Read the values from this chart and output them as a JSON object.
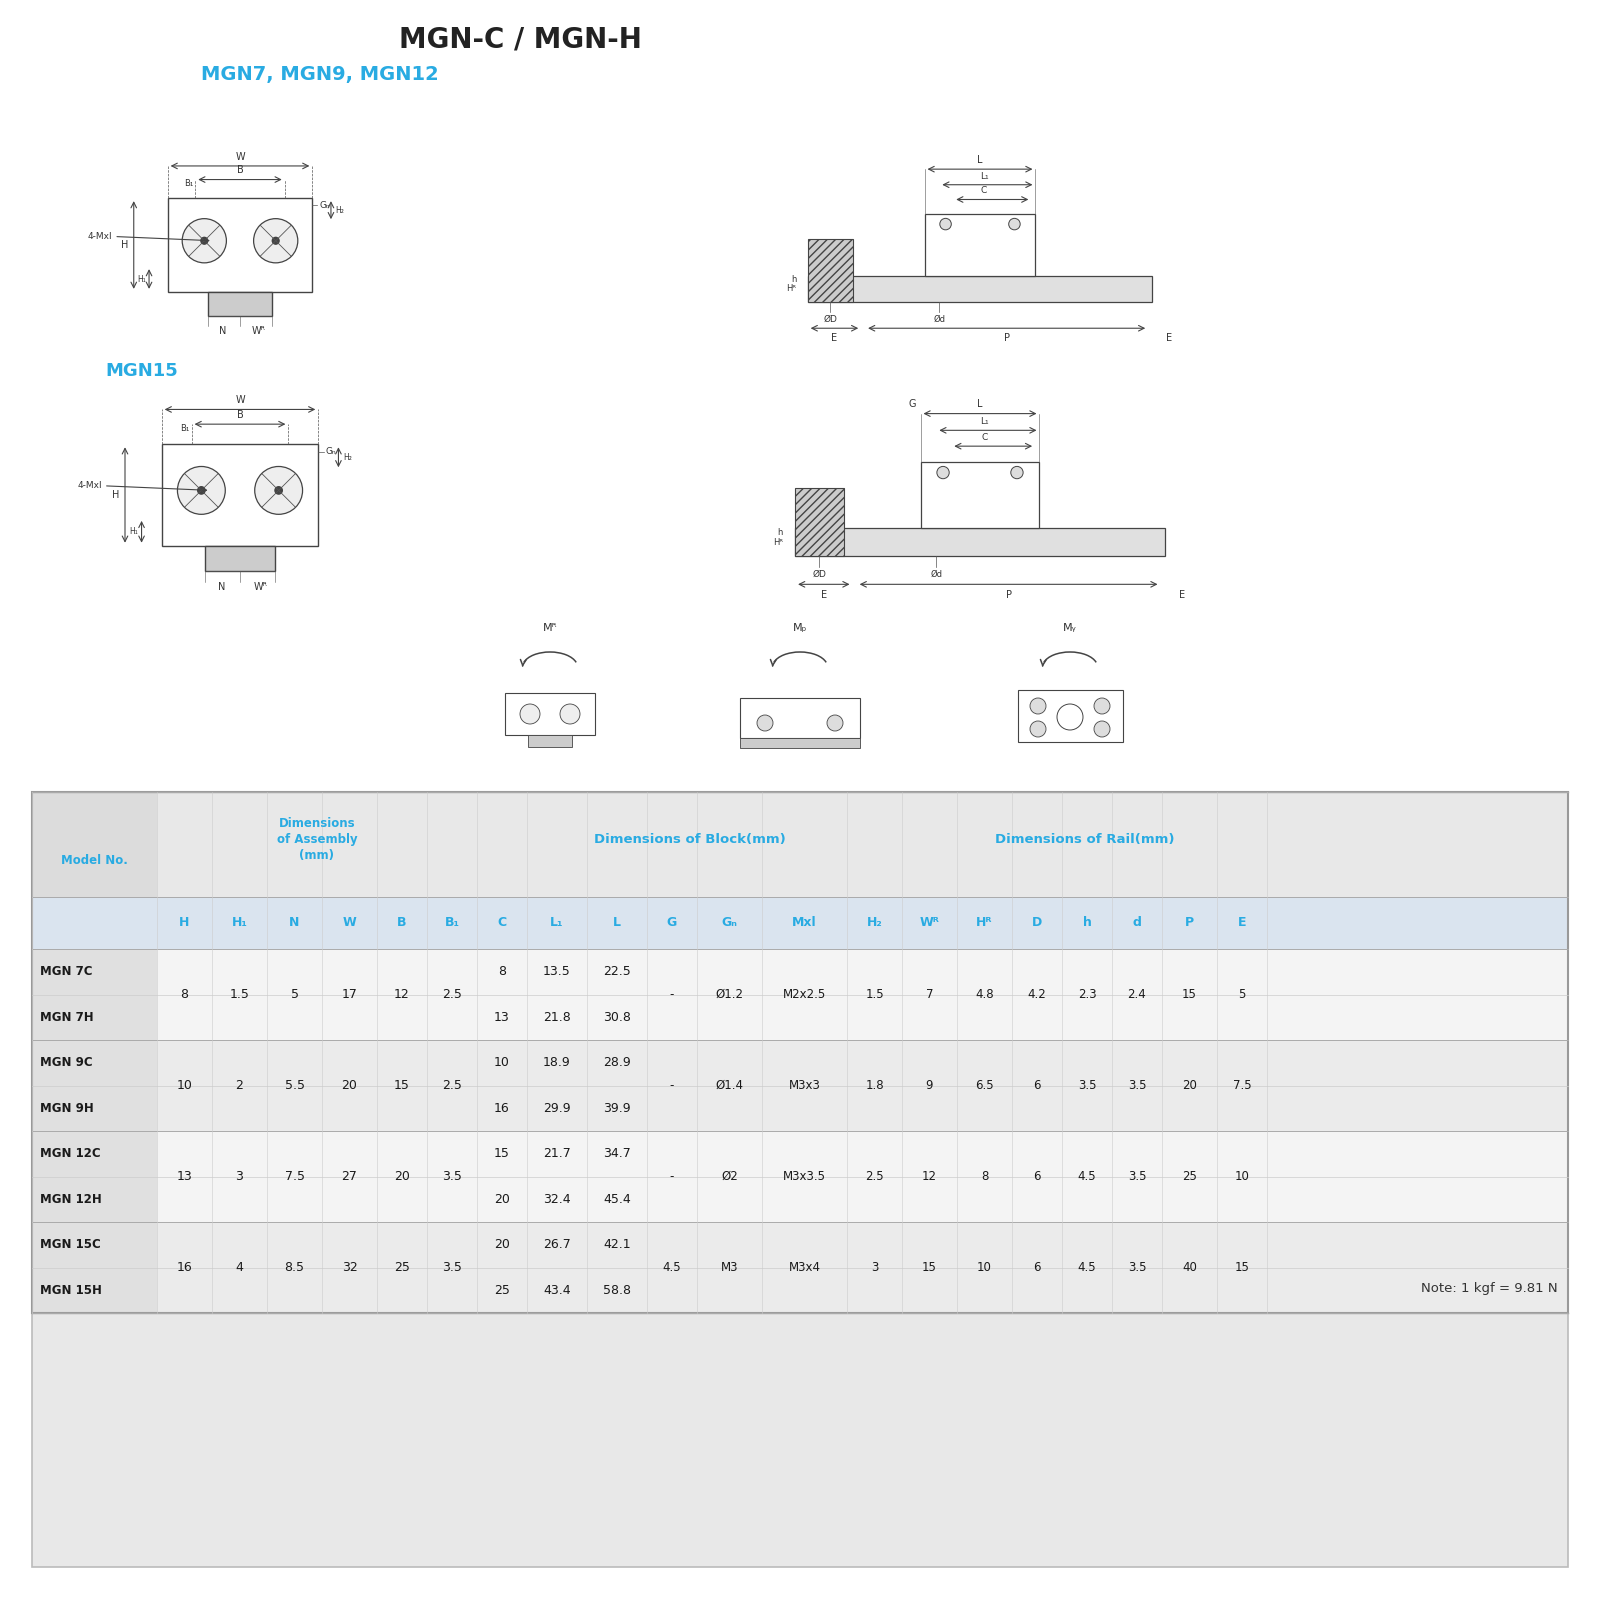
{
  "title": "MGN-C / MGN-H",
  "subtitle1": "MGN7, MGN9, MGN12",
  "subtitle2": "MGN15",
  "title_color": "#222222",
  "subtitle_color": "#29abe2",
  "bg_color": "#ffffff",
  "table_header_color": "#29abe2",
  "note": "Note: 1 kgf = 9.81 N",
  "col_header_labels": [
    "",
    "H",
    "H₁",
    "N",
    "W",
    "B",
    "B₁",
    "C",
    "L₁",
    "L",
    "G",
    "Gₙ",
    "Mxl",
    "H₂",
    "Wᴿ",
    "Hᴿ",
    "D",
    "h",
    "d",
    "P",
    "E"
  ],
  "col_widths": [
    1.25,
    0.55,
    0.55,
    0.55,
    0.55,
    0.5,
    0.5,
    0.5,
    0.6,
    0.6,
    0.5,
    0.65,
    0.85,
    0.55,
    0.55,
    0.55,
    0.5,
    0.5,
    0.5,
    0.55,
    0.5
  ],
  "rows": [
    {
      "model": "MGN 7C",
      "H": "8",
      "H1": "1.5",
      "N": "5",
      "W": "17",
      "B": "12",
      "B1": "2.5",
      "C": "8",
      "L1": "13.5",
      "L": "22.5",
      "G": "-",
      "Gn": "Ø1.2",
      "Mxl": "M2x2.5",
      "H2": "1.5",
      "WR": "7",
      "HR": "4.8",
      "D": "4.2",
      "h": "2.3",
      "d": "2.4",
      "P": "15",
      "E": "5"
    },
    {
      "model": "MGN 7H",
      "H": "",
      "H1": "",
      "N": "",
      "W": "",
      "B": "",
      "B1": "",
      "C": "13",
      "L1": "21.8",
      "L": "30.8",
      "G": "",
      "Gn": "",
      "Mxl": "",
      "H2": "",
      "WR": "",
      "HR": "",
      "D": "",
      "h": "",
      "d": "",
      "P": "",
      "E": ""
    },
    {
      "model": "MGN 9C",
      "H": "10",
      "H1": "2",
      "N": "5.5",
      "W": "20",
      "B": "15",
      "B1": "2.5",
      "C": "10",
      "L1": "18.9",
      "L": "28.9",
      "G": "-",
      "Gn": "Ø1.4",
      "Mxl": "M3x3",
      "H2": "1.8",
      "WR": "9",
      "HR": "6.5",
      "D": "6",
      "h": "3.5",
      "d": "3.5",
      "P": "20",
      "E": "7.5"
    },
    {
      "model": "MGN 9H",
      "H": "",
      "H1": "",
      "N": "",
      "W": "",
      "B": "",
      "B1": "",
      "C": "16",
      "L1": "29.9",
      "L": "39.9",
      "G": "",
      "Gn": "",
      "Mxl": "",
      "H2": "",
      "WR": "",
      "HR": "",
      "D": "",
      "h": "",
      "d": "",
      "P": "",
      "E": ""
    },
    {
      "model": "MGN 12C",
      "H": "13",
      "H1": "3",
      "N": "7.5",
      "W": "27",
      "B": "20",
      "B1": "3.5",
      "C": "15",
      "L1": "21.7",
      "L": "34.7",
      "G": "-",
      "Gn": "Ø2",
      "Mxl": "M3x3.5",
      "H2": "2.5",
      "WR": "12",
      "HR": "8",
      "D": "6",
      "h": "4.5",
      "d": "3.5",
      "P": "25",
      "E": "10"
    },
    {
      "model": "MGN 12H",
      "H": "",
      "H1": "",
      "N": "",
      "W": "",
      "B": "",
      "B1": "",
      "C": "20",
      "L1": "32.4",
      "L": "45.4",
      "G": "",
      "Gn": "",
      "Mxl": "",
      "H2": "",
      "WR": "",
      "HR": "",
      "D": "",
      "h": "",
      "d": "",
      "P": "",
      "E": ""
    },
    {
      "model": "MGN 15C",
      "H": "16",
      "H1": "4",
      "N": "8.5",
      "W": "32",
      "B": "25",
      "B1": "3.5",
      "C": "20",
      "L1": "26.7",
      "L": "42.1",
      "G": "4.5",
      "Gn": "M3",
      "Mxl": "M3x4",
      "H2": "3",
      "WR": "15",
      "HR": "10",
      "D": "6",
      "h": "4.5",
      "d": "3.5",
      "P": "40",
      "E": "15"
    },
    {
      "model": "MGN 15H",
      "H": "",
      "H1": "",
      "N": "",
      "W": "",
      "B": "",
      "B1": "",
      "C": "25",
      "L1": "43.4",
      "L": "58.8",
      "G": "",
      "Gn": "",
      "Mxl": "",
      "H2": "",
      "WR": "",
      "HR": "",
      "D": "",
      "h": "",
      "d": "",
      "P": "",
      "E": ""
    }
  ]
}
